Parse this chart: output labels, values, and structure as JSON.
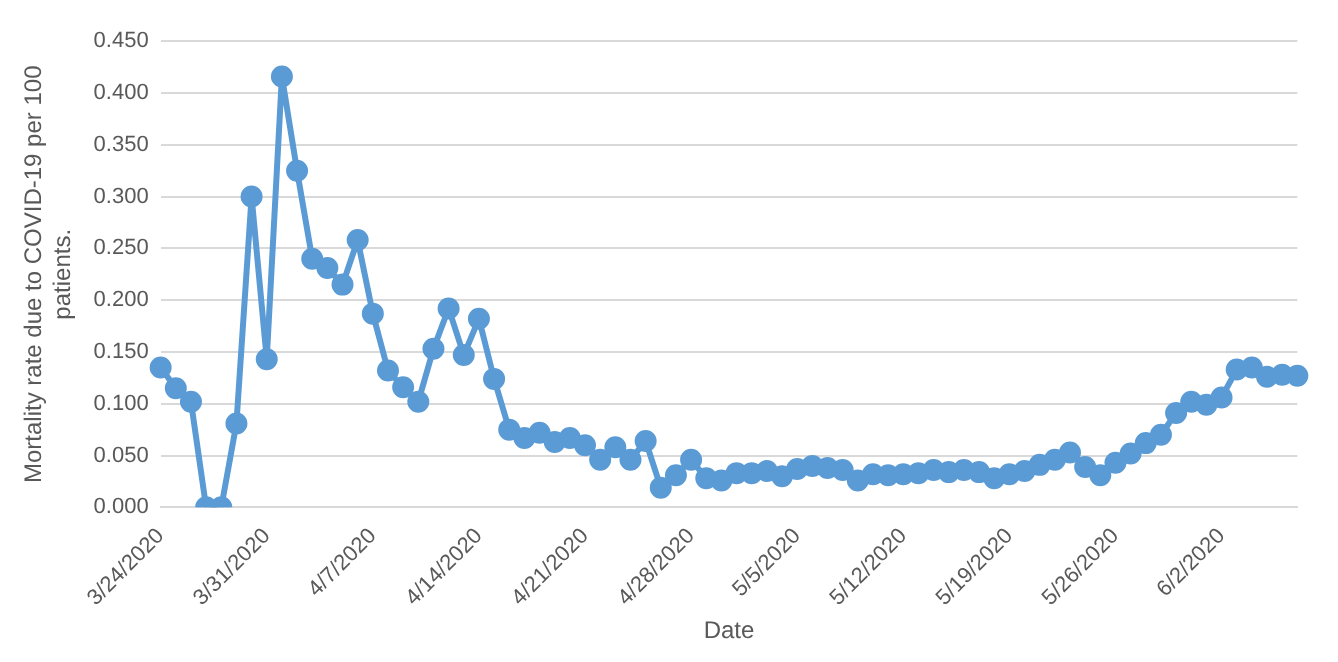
{
  "chart_data": {
    "type": "line",
    "xlabel": "Date",
    "ylabel": "Mortality rate due to COVID-19 per 100 patients.",
    "categories": [
      "3/24/2020",
      null,
      null,
      null,
      null,
      null,
      null,
      "3/31/2020",
      null,
      null,
      null,
      null,
      null,
      null,
      "4/7/2020",
      null,
      null,
      null,
      null,
      null,
      null,
      "4/14/2020",
      null,
      null,
      null,
      null,
      null,
      null,
      "4/21/2020",
      null,
      null,
      null,
      null,
      null,
      null,
      "4/28/2020",
      null,
      null,
      null,
      null,
      null,
      null,
      "5/5/2020",
      null,
      null,
      null,
      null,
      null,
      null,
      "5/12/2020",
      null,
      null,
      null,
      null,
      null,
      null,
      "5/19/2020",
      null,
      null,
      null,
      null,
      null,
      null,
      "5/26/2020",
      null,
      null,
      null,
      null,
      null,
      null,
      "6/2/2020",
      null,
      null,
      null,
      null,
      null
    ],
    "series": [
      {
        "color": "#5b9bd5",
        "values": [
          0.135,
          0.115,
          0.102,
          0,
          0,
          0.081,
          0.3,
          0.143,
          0.416,
          0.325,
          0.24,
          0.231,
          0.215,
          0.258,
          0.187,
          0.132,
          0.116,
          0.102,
          0.153,
          0.192,
          0.147,
          0.182,
          0.124,
          0.075,
          0.067,
          0.072,
          0.063,
          0.067,
          0.06,
          0.046,
          0.058,
          0.046,
          0.064,
          0.019,
          0.031,
          0.046,
          0.028,
          0.026,
          0.033,
          0.033,
          0.035,
          0.03,
          0.037,
          0.04,
          0.038,
          0.036,
          0.026,
          0.032,
          0.031,
          0.032,
          0.033,
          0.036,
          0.034,
          0.036,
          0.034,
          0.028,
          0.032,
          0.035,
          0.041,
          0.046,
          0.053,
          0.039,
          0.031,
          0.043,
          0.052,
          0.062,
          0.07,
          0.091,
          0.102,
          0.099,
          0.106,
          0.133,
          0.135,
          0.126,
          0.128,
          0.127
        ]
      }
    ],
    "ylim": [
      0,
      0.45
    ],
    "yticks": [
      {
        "value": 0,
        "label": "0.000"
      },
      {
        "value": 0.05,
        "label": "0.050"
      },
      {
        "value": 0.1,
        "label": "0.100"
      },
      {
        "value": 0.15,
        "label": "0.150"
      },
      {
        "value": 0.2,
        "label": "0.200"
      },
      {
        "value": 0.25,
        "label": "0.250"
      },
      {
        "value": 0.3,
        "label": "0.300"
      },
      {
        "value": 0.35,
        "label": "0.350"
      },
      {
        "value": 0.4,
        "label": "0.400"
      },
      {
        "value": 0.45,
        "label": "0.450"
      }
    ],
    "grid": "y",
    "marker": "circle",
    "line_style": "solid"
  }
}
